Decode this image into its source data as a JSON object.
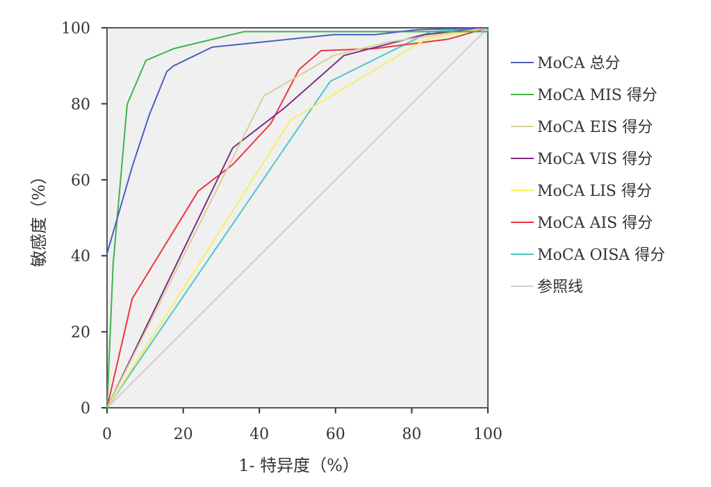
{
  "chart_data": {
    "type": "line",
    "title": "",
    "xlabel": "1- 特异度（%）",
    "ylabel": "敏感度（%）",
    "xlim": [
      0,
      100
    ],
    "ylim": [
      0,
      100
    ],
    "xticks": [
      "0",
      "20",
      "40",
      "60",
      "80",
      "100"
    ],
    "yticks": [
      "0",
      "20",
      "40",
      "60",
      "80",
      "100"
    ],
    "legend_position": "right",
    "series": [
      {
        "name": "MoCA 总分",
        "color": "#4a5fbf",
        "points": [
          [
            0,
            40.6
          ],
          [
            6.6,
            63.4
          ],
          [
            11.1,
            77.1
          ],
          [
            15.7,
            88.5
          ],
          [
            17.5,
            90
          ],
          [
            27.6,
            94.9
          ],
          [
            59.5,
            98.2
          ],
          [
            70.4,
            98.2
          ],
          [
            81.4,
            99.5
          ],
          [
            100,
            100
          ]
        ]
      },
      {
        "name": "MoCA MIS 得分",
        "color": "#3cb54a",
        "points": [
          [
            0,
            0
          ],
          [
            1.6,
            37.8
          ],
          [
            5.3,
            79.9
          ],
          [
            10.2,
            91.4
          ],
          [
            17.5,
            94.5
          ],
          [
            36,
            99
          ],
          [
            100,
            99
          ],
          [
            100,
            100
          ]
        ]
      },
      {
        "name": "MoCA EIS 得分",
        "color": "#d9cf9a",
        "points": [
          [
            0,
            0
          ],
          [
            41.2,
            82.1
          ],
          [
            59.5,
            92.7
          ],
          [
            74,
            96.3
          ],
          [
            100,
            100
          ]
        ]
      },
      {
        "name": "MoCA VIS 得分",
        "color": "#7b2d83",
        "points": [
          [
            0,
            0
          ],
          [
            33,
            68.4
          ],
          [
            46.7,
            79
          ],
          [
            62.2,
            92.7
          ],
          [
            83.2,
            98.2
          ],
          [
            100,
            100
          ]
        ]
      },
      {
        "name": "MoCA LIS 得分",
        "color": "#f5f060",
        "points": [
          [
            0,
            0
          ],
          [
            48.2,
            75.7
          ],
          [
            83.6,
            96.9
          ],
          [
            100,
            100
          ]
        ]
      },
      {
        "name": "MoCA AIS 得分",
        "color": "#ee3340",
        "points": [
          [
            0,
            0
          ],
          [
            6.6,
            28.7
          ],
          [
            23.9,
            57
          ],
          [
            33,
            64
          ],
          [
            43,
            74.8
          ],
          [
            50.4,
            89
          ],
          [
            56.2,
            94
          ],
          [
            70,
            94.5
          ],
          [
            89.6,
            97
          ],
          [
            100,
            100
          ]
        ]
      },
      {
        "name": "MoCA OISA 得分",
        "color": "#4cc6c8",
        "points": [
          [
            0,
            0
          ],
          [
            58.6,
            85.9
          ],
          [
            85,
            99
          ],
          [
            100,
            100
          ]
        ]
      },
      {
        "name": "参照线",
        "color": "#cfcfcf",
        "points": [
          [
            0,
            0
          ],
          [
            100,
            100
          ]
        ]
      }
    ]
  }
}
